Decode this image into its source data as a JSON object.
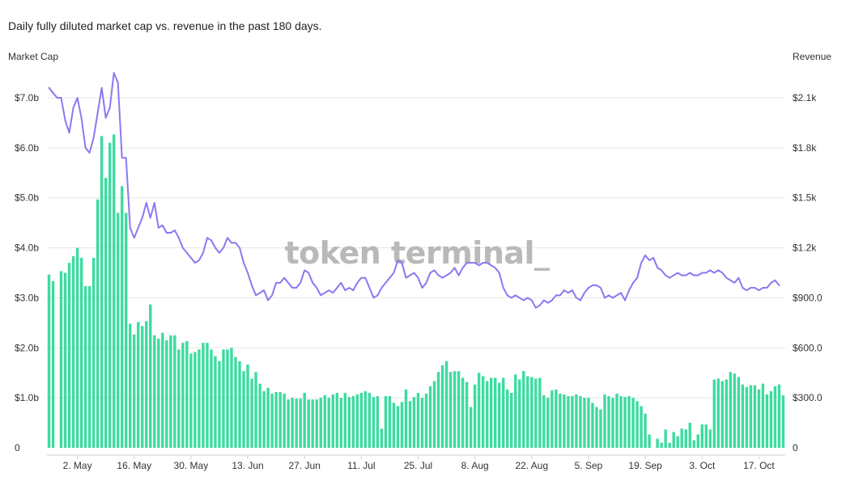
{
  "page": {
    "title": "Daily fully diluted market cap vs. revenue in the past 180 days.",
    "watermark": "token terminal_"
  },
  "chart_data": {
    "type": "bar",
    "subtype": "bar-line-dual-axis",
    "title": "Daily fully diluted market cap vs. revenue in the past 180 days.",
    "y_left_label": "Market Cap",
    "y_right_label": "Revenue",
    "y_left_ticks": [
      "0",
      "$1.0b",
      "$2.0b",
      "$3.0b",
      "$4.0b",
      "$5.0b",
      "$6.0b",
      "$7.0b"
    ],
    "y_right_ticks": [
      "0",
      "$300.0",
      "$600.0",
      "$900.0",
      "$1.2k",
      "$1.5k",
      "$1.8k",
      "$2.1k"
    ],
    "y_left_lim": [
      0,
      7000000000
    ],
    "y_right_lim": [
      0,
      2100
    ],
    "x_tick_labels": [
      "2. May",
      "16. May",
      "30. May",
      "13. Jun",
      "27. Jun",
      "11. Jul",
      "25. Jul",
      "8. Aug",
      "22. Aug",
      "5. Sep",
      "19. Sep",
      "3. Oct",
      "17. Oct"
    ],
    "x_tick_positions": [
      7,
      21,
      35,
      49,
      63,
      77,
      91,
      105,
      119,
      133,
      147,
      161,
      175
    ],
    "grid": true,
    "legend": "none",
    "colors": {
      "bars": "#3ddba0",
      "line": "#8a79f0"
    },
    "series": [
      {
        "name": "Revenue",
        "axis": "right",
        "type": "bar",
        "values": [
          1040,
          1000,
          0,
          1060,
          1050,
          1110,
          1150,
          1200,
          1140,
          970,
          970,
          1140,
          1490,
          1870,
          1620,
          1830,
          1880,
          1410,
          1570,
          1410,
          745,
          680,
          755,
          730,
          760,
          860,
          675,
          655,
          690,
          645,
          675,
          675,
          590,
          630,
          640,
          565,
          575,
          590,
          630,
          630,
          590,
          550,
          520,
          590,
          590,
          600,
          545,
          520,
          460,
          500,
          415,
          455,
          385,
          340,
          360,
          325,
          335,
          335,
          325,
          290,
          300,
          295,
          295,
          330,
          290,
          290,
          290,
          300,
          315,
          300,
          320,
          330,
          300,
          330,
          305,
          310,
          320,
          330,
          340,
          330,
          305,
          310,
          115,
          310,
          310,
          270,
          250,
          275,
          350,
          280,
          305,
          330,
          300,
          325,
          370,
          400,
          455,
          495,
          520,
          455,
          460,
          460,
          420,
          395,
          245,
          380,
          450,
          430,
          400,
          420,
          420,
          390,
          420,
          350,
          330,
          440,
          410,
          460,
          430,
          425,
          415,
          420,
          315,
          300,
          345,
          350,
          325,
          320,
          310,
          310,
          320,
          310,
          300,
          300,
          270,
          245,
          230,
          320,
          310,
          300,
          325,
          310,
          305,
          310,
          300,
          280,
          250,
          205,
          80,
          0,
          55,
          30,
          110,
          30,
          95,
          70,
          115,
          110,
          150,
          45,
          80,
          140,
          140,
          110,
          410,
          415,
          400,
          410,
          455,
          445,
          425,
          380,
          365,
          375,
          375,
          350,
          385,
          320,
          340,
          370,
          380,
          315
        ]
      },
      {
        "name": "Market Cap",
        "axis": "left",
        "type": "line",
        "values": [
          7200000000.0,
          7100000000.0,
          7000000000.0,
          7000000000.0,
          6550000000.0,
          6300000000.0,
          6800000000.0,
          7000000000.0,
          6600000000.0,
          6000000000.0,
          5900000000.0,
          6200000000.0,
          6700000000.0,
          7200000000.0,
          6600000000.0,
          6800000000.0,
          7500000000.0,
          7300000000.0,
          5800000000.0,
          5800000000.0,
          4400000000.0,
          4200000000.0,
          4400000000.0,
          4600000000.0,
          4900000000.0,
          4600000000.0,
          4900000000.0,
          4400000000.0,
          4450000000.0,
          4300000000.0,
          4300000000.0,
          4350000000.0,
          4200000000.0,
          4000000000.0,
          3900000000.0,
          3800000000.0,
          3700000000.0,
          3750000000.0,
          3900000000.0,
          4200000000.0,
          4150000000.0,
          4000000000.0,
          3900000000.0,
          4000000000.0,
          4200000000.0,
          4100000000.0,
          4100000000.0,
          4000000000.0,
          3700000000.0,
          3500000000.0,
          3250000000.0,
          3050000000.0,
          3100000000.0,
          3150000000.0,
          2950000000.0,
          3050000000.0,
          3300000000.0,
          3300000000.0,
          3400000000.0,
          3300000000.0,
          3200000000.0,
          3200000000.0,
          3300000000.0,
          3550000000.0,
          3500000000.0,
          3300000000.0,
          3200000000.0,
          3050000000.0,
          3100000000.0,
          3150000000.0,
          3100000000.0,
          3200000000.0,
          3300000000.0,
          3150000000.0,
          3200000000.0,
          3150000000.0,
          3300000000.0,
          3400000000.0,
          3400000000.0,
          3200000000.0,
          3000000000.0,
          3050000000.0,
          3200000000.0,
          3300000000.0,
          3400000000.0,
          3500000000.0,
          3750000000.0,
          3700000000.0,
          3400000000.0,
          3450000000.0,
          3500000000.0,
          3400000000.0,
          3200000000.0,
          3300000000.0,
          3500000000.0,
          3550000000.0,
          3450000000.0,
          3400000000.0,
          3450000000.0,
          3500000000.0,
          3600000000.0,
          3450000000.0,
          3600000000.0,
          3700000000.0,
          3700000000.0,
          3700000000.0,
          3650000000.0,
          3700000000.0,
          3700000000.0,
          3650000000.0,
          3600000000.0,
          3500000000.0,
          3200000000.0,
          3050000000.0,
          3000000000.0,
          3050000000.0,
          3000000000.0,
          2950000000.0,
          3000000000.0,
          2950000000.0,
          2800000000.0,
          2850000000.0,
          2950000000.0,
          2900000000.0,
          2950000000.0,
          3050000000.0,
          3050000000.0,
          3150000000.0,
          3100000000.0,
          3150000000.0,
          3000000000.0,
          2950000000.0,
          3100000000.0,
          3200000000.0,
          3250000000.0,
          3250000000.0,
          3200000000.0,
          3000000000.0,
          3050000000.0,
          3000000000.0,
          3050000000.0,
          3100000000.0,
          2950000000.0,
          3150000000.0,
          3300000000.0,
          3400000000.0,
          3700000000.0,
          3850000000.0,
          3750000000.0,
          3800000000.0,
          3600000000.0,
          3550000000.0,
          3450000000.0,
          3400000000.0,
          3450000000.0,
          3500000000.0,
          3450000000.0,
          3450000000.0,
          3500000000.0,
          3450000000.0,
          3450000000.0,
          3500000000.0,
          3500000000.0,
          3550000000.0,
          3500000000.0,
          3550000000.0,
          3500000000.0,
          3400000000.0,
          3350000000.0,
          3300000000.0,
          3400000000.0,
          3200000000.0,
          3150000000.0,
          3200000000.0,
          3200000000.0,
          3150000000.0,
          3200000000.0,
          3200000000.0,
          3300000000.0,
          3350000000.0,
          3250000000.0
        ]
      }
    ]
  }
}
